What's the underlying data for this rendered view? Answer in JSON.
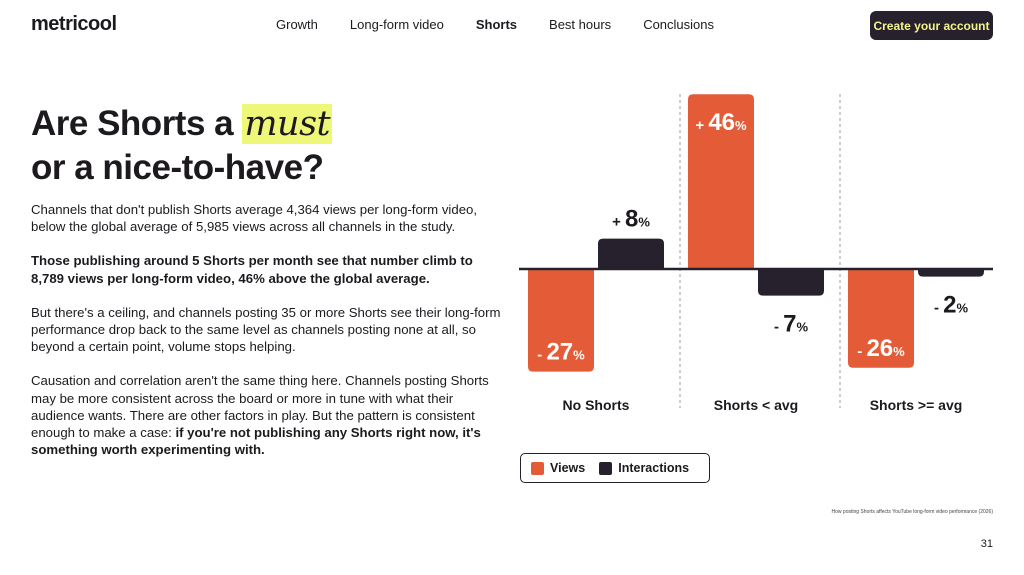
{
  "logo": "metricool",
  "nav": [
    "Growth",
    "Long-form video",
    "Shorts",
    "Best hours",
    "Conclusions"
  ],
  "nav_active": 2,
  "cta": "Create your account",
  "title": {
    "line1_prefix": "Are Shorts a ",
    "line1_highlight": "must",
    "line2": "or a nice-to-have?"
  },
  "paragraphs": {
    "p1": "Channels that don't publish Shorts average 4,364 views per long-form video, below the global average of 5,985 views across all channels in the study.",
    "p2": "Those publishing around 5 Shorts per month see that number climb to 8,789 views per long-form video, 46% above the global average.",
    "p3": "But there's a ceiling, and channels posting 35 or more Shorts see their long-form performance drop back to the same level as channels posting none at all, so beyond a certain point, volume stops helping.",
    "p4_plain": "Causation and correlation aren't the same thing here. Channels posting Shorts may be more consistent across the board or more in tune with what their audience wants. There are other factors in play. But the pattern is consistent enough to make a case: ",
    "p4_bold": "if you're not publishing any Shorts right now, it's something worth experimenting with."
  },
  "chart_data": {
    "type": "bar",
    "categories": [
      "No Shorts",
      "Shorts < avg",
      "Shorts >= avg"
    ],
    "series": [
      {
        "name": "Views",
        "color": "#e45c37",
        "values": [
          -27,
          46,
          -26
        ]
      },
      {
        "name": "Interactions",
        "color": "#27212d",
        "values": [
          8,
          -7,
          -2
        ]
      }
    ],
    "unit": "%",
    "ylim": [
      -50,
      50
    ]
  },
  "colors": {
    "views": "#e45c37",
    "interactions": "#27212d",
    "accent": "#eef777"
  },
  "source": "How posting Shorts affects YouTube long-form video performance (2026)",
  "page_number": "31"
}
